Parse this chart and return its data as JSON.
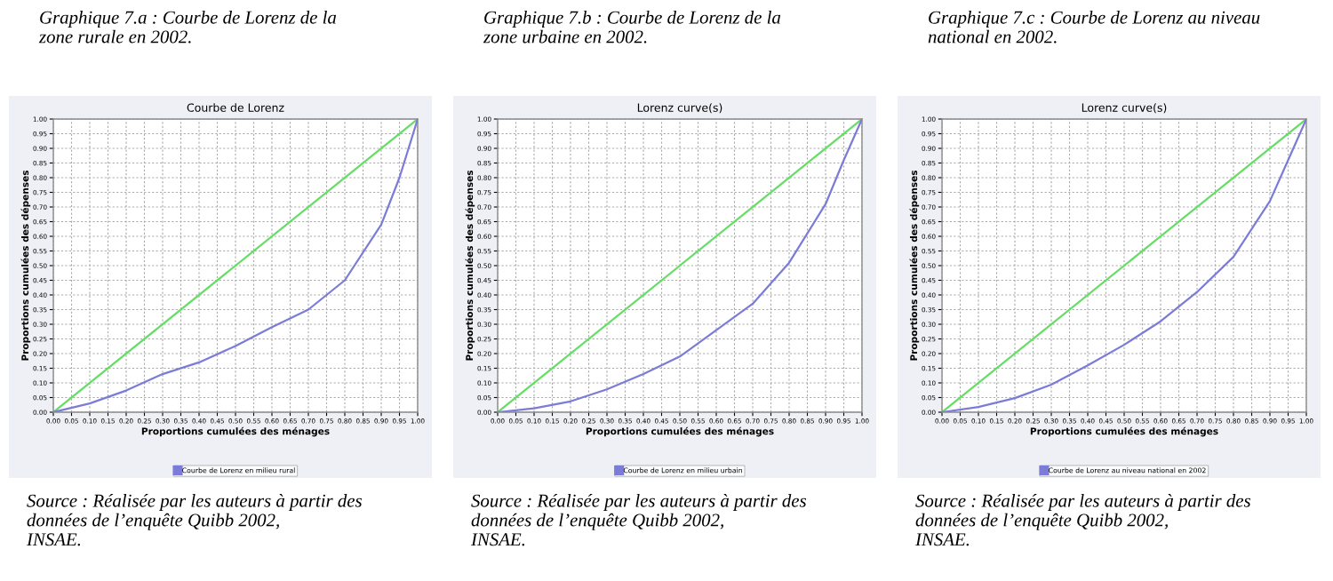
{
  "chart_data": [
    {
      "type": "line",
      "title": "Courbe de Lorenz",
      "xlabel": "Proportions cumulées des ménages",
      "ylabel": "Proportions cumulées des dépenses",
      "annotations": [
        "Graphique 7.a : Courbe de Lorenz de la\nzone rurale en 2002.",
        "Source : Réalisée par les auteurs à partir des\ndonnées de l’enquête Quibb 2002,\nINSAE."
      ],
      "series": [
        {
          "color": "#66dd66",
          "x": [
            0,
            1
          ],
          "values": [
            0,
            1
          ]
        },
        {
          "name": "Courbe de Lorenz en milieu rural",
          "color": "#7b7bd8",
          "x": [
            0,
            0.1,
            0.2,
            0.3,
            0.4,
            0.5,
            0.6,
            0.7,
            0.8,
            0.9,
            0.95,
            1
          ],
          "values": [
            0,
            0.03,
            0.074,
            0.13,
            0.17,
            0.226,
            0.29,
            0.35,
            0.45,
            0.64,
            0.8,
            1
          ]
        }
      ],
      "xlim": [
        0,
        1
      ],
      "ylim": [
        0,
        1
      ],
      "xticks": [
        {
          "value": 0,
          "label": "0.00"
        },
        {
          "value": 0.05,
          "label": "0.05"
        },
        {
          "value": 0.1,
          "label": "0.10"
        },
        {
          "value": 0.15,
          "label": "0.15"
        },
        {
          "value": 0.2,
          "label": "0.20"
        },
        {
          "value": 0.25,
          "label": "0.25"
        },
        {
          "value": 0.3,
          "label": "0.30"
        },
        {
          "value": 0.35,
          "label": "0.35"
        },
        {
          "value": 0.4,
          "label": "0.40"
        },
        {
          "value": 0.45,
          "label": "0.45"
        },
        {
          "value": 0.5,
          "label": "0.50"
        },
        {
          "value": 0.55,
          "label": "0.55"
        },
        {
          "value": 0.6,
          "label": "0.60"
        },
        {
          "value": 0.65,
          "label": "0.65"
        },
        {
          "value": 0.7,
          "label": "0.70"
        },
        {
          "value": 0.75,
          "label": "0.75"
        },
        {
          "value": 0.8,
          "label": "0.80"
        },
        {
          "value": 0.85,
          "label": "0.85"
        },
        {
          "value": 0.9,
          "label": "0.90"
        },
        {
          "value": 0.95,
          "label": "0.95"
        },
        {
          "value": 1,
          "label": "1.00"
        }
      ],
      "yticks": [
        {
          "value": 0,
          "label": "0.00"
        },
        {
          "value": 0.05,
          "label": "0.05"
        },
        {
          "value": 0.1,
          "label": "0.10"
        },
        {
          "value": 0.15,
          "label": "0.15"
        },
        {
          "value": 0.2,
          "label": "0.20"
        },
        {
          "value": 0.25,
          "label": "0.25"
        },
        {
          "value": 0.3,
          "label": "0.30"
        },
        {
          "value": 0.35,
          "label": "0.35"
        },
        {
          "value": 0.4,
          "label": "0.40"
        },
        {
          "value": 0.45,
          "label": "0.45"
        },
        {
          "value": 0.5,
          "label": "0.50"
        },
        {
          "value": 0.55,
          "label": "0.55"
        },
        {
          "value": 0.6,
          "label": "0.60"
        },
        {
          "value": 0.65,
          "label": "0.65"
        },
        {
          "value": 0.7,
          "label": "0.70"
        },
        {
          "value": 0.75,
          "label": "0.75"
        },
        {
          "value": 0.8,
          "label": "0.80"
        },
        {
          "value": 0.85,
          "label": "0.85"
        },
        {
          "value": 0.9,
          "label": "0.90"
        },
        {
          "value": 0.95,
          "label": "0.95"
        },
        {
          "value": 1,
          "label": "1.00"
        }
      ],
      "grid": true,
      "legend": "bottom",
      "marker": "none",
      "line_style": "solid"
    },
    {
      "type": "line",
      "title": "Lorenz curve(s)",
      "xlabel": "Proportions cumulées des ménages",
      "ylabel": "Proportions cumulées des dépenses",
      "annotations": [
        "Graphique 7.b : Courbe de Lorenz de la\nzone urbaine en 2002.",
        "Source : Réalisée par les auteurs à partir des\ndonnées de l’enquête Quibb 2002,\nINSAE."
      ],
      "series": [
        {
          "color": "#66dd66",
          "x": [
            0,
            1
          ],
          "values": [
            0,
            1
          ]
        },
        {
          "name": "Courbe de Lorenz en milieu urbain",
          "color": "#7b7bd8",
          "x": [
            0,
            0.1,
            0.2,
            0.3,
            0.4,
            0.5,
            0.6,
            0.7,
            0.8,
            0.9,
            0.95,
            1
          ],
          "values": [
            0,
            0.013,
            0.037,
            0.078,
            0.13,
            0.19,
            0.28,
            0.37,
            0.51,
            0.71,
            0.86,
            1
          ]
        }
      ],
      "xlim": [
        0,
        1
      ],
      "ylim": [
        0,
        1
      ],
      "xticks": [
        {
          "value": 0,
          "label": "0.00"
        },
        {
          "value": 0.05,
          "label": "0.05"
        },
        {
          "value": 0.1,
          "label": "0.10"
        },
        {
          "value": 0.15,
          "label": "0.15"
        },
        {
          "value": 0.2,
          "label": "0.20"
        },
        {
          "value": 0.25,
          "label": "0.25"
        },
        {
          "value": 0.3,
          "label": "0.30"
        },
        {
          "value": 0.35,
          "label": "0.35"
        },
        {
          "value": 0.4,
          "label": "0.40"
        },
        {
          "value": 0.45,
          "label": "0.45"
        },
        {
          "value": 0.5,
          "label": "0.50"
        },
        {
          "value": 0.55,
          "label": "0.55"
        },
        {
          "value": 0.6,
          "label": "0.60"
        },
        {
          "value": 0.65,
          "label": "0.65"
        },
        {
          "value": 0.7,
          "label": "0.70"
        },
        {
          "value": 0.75,
          "label": "0.75"
        },
        {
          "value": 0.8,
          "label": "0.80"
        },
        {
          "value": 0.85,
          "label": "0.85"
        },
        {
          "value": 0.9,
          "label": "0.90"
        },
        {
          "value": 0.95,
          "label": "0.95"
        },
        {
          "value": 1,
          "label": "1.00"
        }
      ],
      "yticks": [
        {
          "value": 0,
          "label": "0.00"
        },
        {
          "value": 0.05,
          "label": "0.05"
        },
        {
          "value": 0.1,
          "label": "0.10"
        },
        {
          "value": 0.15,
          "label": "0.15"
        },
        {
          "value": 0.2,
          "label": "0.20"
        },
        {
          "value": 0.25,
          "label": "0.25"
        },
        {
          "value": 0.3,
          "label": "0.30"
        },
        {
          "value": 0.35,
          "label": "0.35"
        },
        {
          "value": 0.4,
          "label": "0.40"
        },
        {
          "value": 0.45,
          "label": "0.45"
        },
        {
          "value": 0.5,
          "label": "0.50"
        },
        {
          "value": 0.55,
          "label": "0.55"
        },
        {
          "value": 0.6,
          "label": "0.60"
        },
        {
          "value": 0.65,
          "label": "0.65"
        },
        {
          "value": 0.7,
          "label": "0.70"
        },
        {
          "value": 0.75,
          "label": "0.75"
        },
        {
          "value": 0.8,
          "label": "0.80"
        },
        {
          "value": 0.85,
          "label": "0.85"
        },
        {
          "value": 0.9,
          "label": "0.90"
        },
        {
          "value": 0.95,
          "label": "0.95"
        },
        {
          "value": 1,
          "label": "1.00"
        }
      ],
      "grid": true,
      "legend": "bottom",
      "marker": "none",
      "line_style": "solid"
    },
    {
      "type": "line",
      "title": "Lorenz curve(s)",
      "xlabel": "Proportions cumulées des ménages",
      "ylabel": "Proportions cumulées des dépenses",
      "annotations": [
        "Graphique 7.c : Courbe de Lorenz au niveau\nnational en 2002.",
        "Source : Réalisée par les auteurs à partir des\ndonnées de l’enquête Quibb 2002,\nINSAE."
      ],
      "series": [
        {
          "color": "#66dd66",
          "x": [
            0,
            1
          ],
          "values": [
            0,
            1
          ]
        },
        {
          "name": "Courbe de Lorenz au niveau national en 2002",
          "color": "#7b7bd8",
          "x": [
            0,
            0.1,
            0.2,
            0.3,
            0.4,
            0.5,
            0.6,
            0.7,
            0.8,
            0.9,
            0.95,
            1
          ],
          "values": [
            0,
            0.018,
            0.048,
            0.094,
            0.16,
            0.23,
            0.31,
            0.41,
            0.53,
            0.72,
            0.86,
            1
          ]
        }
      ],
      "xlim": [
        0,
        1
      ],
      "ylim": [
        0,
        1
      ],
      "xticks": [
        {
          "value": 0,
          "label": "0.00"
        },
        {
          "value": 0.05,
          "label": "0.05"
        },
        {
          "value": 0.1,
          "label": "0.10"
        },
        {
          "value": 0.15,
          "label": "0.15"
        },
        {
          "value": 0.2,
          "label": "0.20"
        },
        {
          "value": 0.25,
          "label": "0.25"
        },
        {
          "value": 0.3,
          "label": "0.30"
        },
        {
          "value": 0.35,
          "label": "0.35"
        },
        {
          "value": 0.4,
          "label": "0.40"
        },
        {
          "value": 0.45,
          "label": "0.45"
        },
        {
          "value": 0.5,
          "label": "0.50"
        },
        {
          "value": 0.55,
          "label": "0.55"
        },
        {
          "value": 0.6,
          "label": "0.60"
        },
        {
          "value": 0.65,
          "label": "0.65"
        },
        {
          "value": 0.7,
          "label": "0.70"
        },
        {
          "value": 0.75,
          "label": "0.75"
        },
        {
          "value": 0.8,
          "label": "0.80"
        },
        {
          "value": 0.85,
          "label": "0.85"
        },
        {
          "value": 0.9,
          "label": "0.90"
        },
        {
          "value": 0.95,
          "label": "0.95"
        },
        {
          "value": 1,
          "label": "1.00"
        }
      ],
      "yticks": [
        {
          "value": 0,
          "label": "0.00"
        },
        {
          "value": 0.05,
          "label": "0.05"
        },
        {
          "value": 0.1,
          "label": "0.10"
        },
        {
          "value": 0.15,
          "label": "0.15"
        },
        {
          "value": 0.2,
          "label": "0.20"
        },
        {
          "value": 0.25,
          "label": "0.25"
        },
        {
          "value": 0.3,
          "label": "0.30"
        },
        {
          "value": 0.35,
          "label": "0.35"
        },
        {
          "value": 0.4,
          "label": "0.40"
        },
        {
          "value": 0.45,
          "label": "0.45"
        },
        {
          "value": 0.5,
          "label": "0.50"
        },
        {
          "value": 0.55,
          "label": "0.55"
        },
        {
          "value": 0.6,
          "label": "0.60"
        },
        {
          "value": 0.65,
          "label": "0.65"
        },
        {
          "value": 0.7,
          "label": "0.70"
        },
        {
          "value": 0.75,
          "label": "0.75"
        },
        {
          "value": 0.8,
          "label": "0.80"
        },
        {
          "value": 0.85,
          "label": "0.85"
        },
        {
          "value": 0.9,
          "label": "0.90"
        },
        {
          "value": 0.95,
          "label": "0.95"
        },
        {
          "value": 1,
          "label": "1.00"
        }
      ],
      "grid": true,
      "legend": "bottom",
      "marker": "none",
      "line_style": "solid"
    }
  ]
}
